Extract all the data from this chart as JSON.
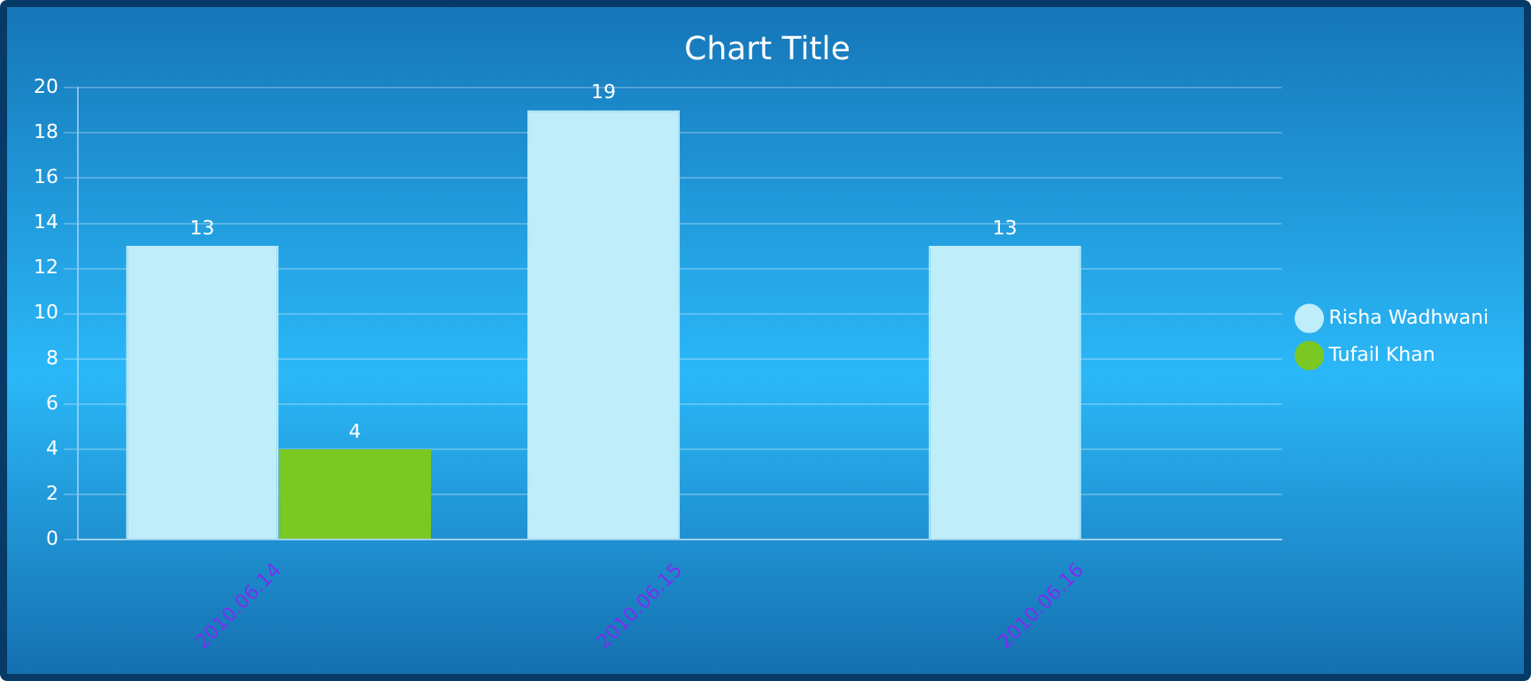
{
  "chart_data": {
    "type": "bar",
    "title": "Chart Title",
    "categories": [
      "2010.06.14",
      "2010.06.15",
      "2010.06.16"
    ],
    "series": [
      {
        "name": "Risha Wadhwani",
        "color": "#bfeefa",
        "values": [
          13,
          19,
          13
        ]
      },
      {
        "name": "Tufail Khan",
        "color": "#7cc823",
        "values": [
          4,
          null,
          null
        ]
      }
    ],
    "ylim": [
      0,
      20
    ],
    "yticks": [
      0,
      2,
      4,
      6,
      8,
      10,
      12,
      14,
      16,
      18,
      20
    ],
    "grid": "y",
    "legend": "right",
    "data_labels": true
  }
}
